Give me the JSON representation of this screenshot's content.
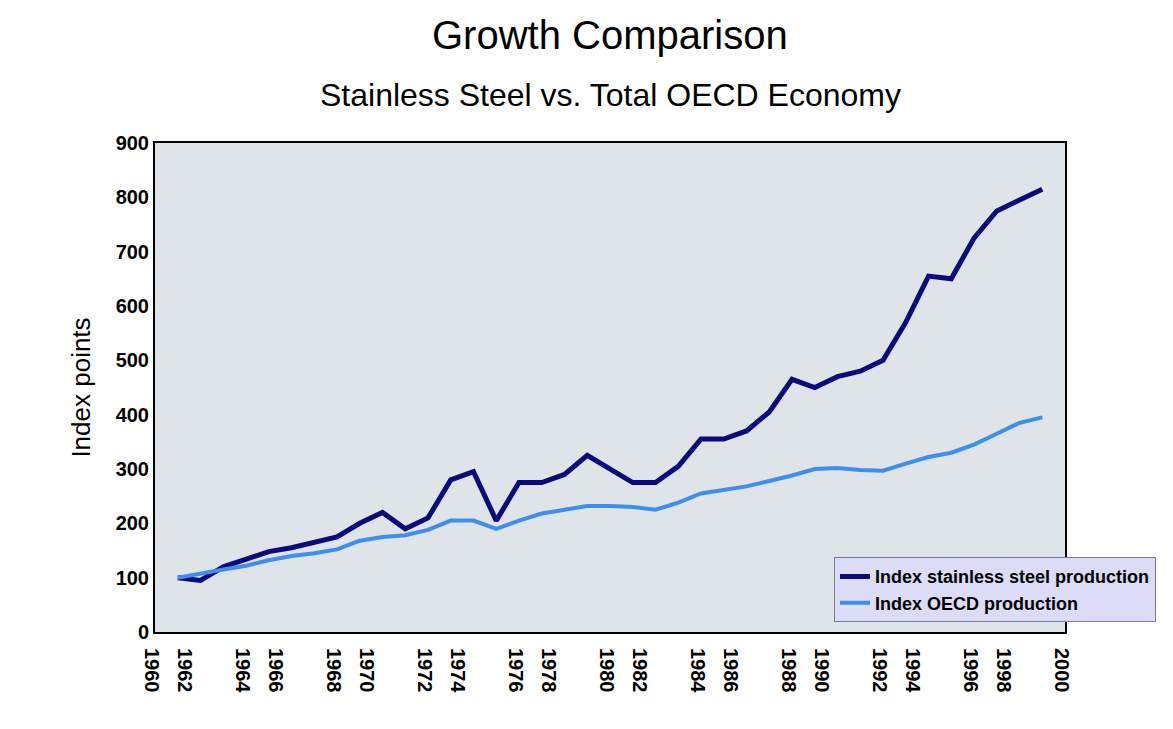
{
  "chart_data": {
    "type": "line",
    "title": "Growth Comparison",
    "subtitle": "Stainless Steel vs. Total OECD Economy",
    "y_label": "Index points",
    "x": [
      1961,
      1962,
      1963,
      1964,
      1965,
      1966,
      1967,
      1968,
      1969,
      1970,
      1971,
      1972,
      1973,
      1974,
      1975,
      1976,
      1977,
      1978,
      1979,
      1980,
      1981,
      1982,
      1983,
      1984,
      1985,
      1986,
      1987,
      1988,
      1989,
      1990,
      1991,
      1992,
      1993,
      1994,
      1995,
      1996,
      1997,
      1998,
      1999
    ],
    "series": [
      {
        "name": "Index stainless steel production",
        "color": "#0a0a80",
        "values": [
          100,
          95,
          120,
          135,
          148,
          155,
          165,
          175,
          200,
          220,
          190,
          210,
          280,
          295,
          205,
          275,
          275,
          290,
          325,
          300,
          275,
          275,
          305,
          355,
          355,
          370,
          405,
          465,
          450,
          470,
          480,
          500,
          570,
          655,
          650,
          725,
          775,
          795,
          815
        ]
      },
      {
        "name": "Index OECD production",
        "color": "#3d8ef0",
        "values": [
          100,
          108,
          115,
          122,
          132,
          140,
          145,
          152,
          168,
          175,
          178,
          188,
          205,
          205,
          190,
          205,
          218,
          225,
          232,
          232,
          230,
          225,
          238,
          255,
          262,
          268,
          278,
          288,
          300,
          302,
          298,
          297,
          310,
          322,
          330,
          345,
          365,
          385,
          395
        ]
      }
    ],
    "xlim": [
      1960,
      2000
    ],
    "xticks": [
      1960,
      1962,
      1964,
      1966,
      1968,
      1970,
      1972,
      1974,
      1976,
      1978,
      1980,
      1982,
      1984,
      1986,
      1988,
      1990,
      1992,
      1994,
      1996,
      1998,
      2000
    ],
    "ylim": [
      0,
      900
    ],
    "yticks": [
      0,
      100,
      200,
      300,
      400,
      500,
      600,
      700,
      800,
      900
    ],
    "grid": false,
    "legend": "bottom right"
  }
}
